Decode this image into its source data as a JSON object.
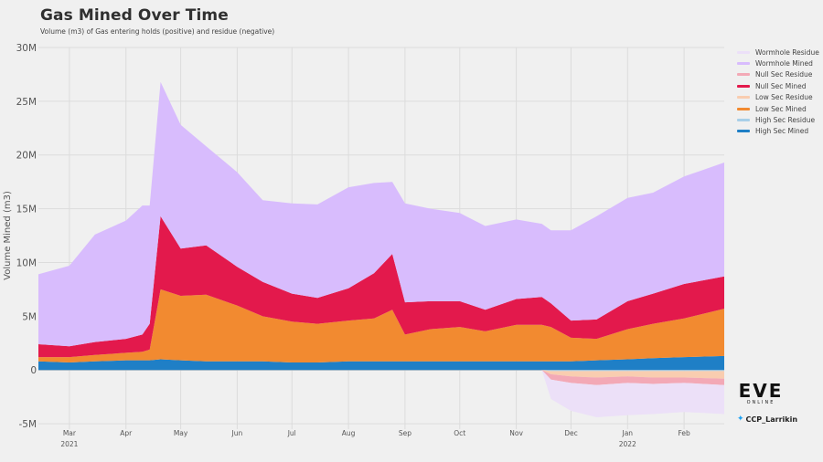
{
  "title": "Gas Mined Over Time",
  "subtitle": "Volume (m3) of Gas entering holds (positive) and residue (negative)",
  "branding": {
    "logo": "EVE",
    "logo_sub": "ONLINE",
    "handle": "CCP_Larrikin",
    "handle_icon": "twitter-bird-icon"
  },
  "chart_data": {
    "type": "area",
    "stacked": true,
    "title": "Gas Mined Over Time",
    "subtitle": "Volume (m3) of Gas entering holds (positive) and residue (negative)",
    "ylabel": "Volume Mined (m3)",
    "xlabel": "",
    "ylim": [
      -5500000,
      30000000
    ],
    "yticks": [
      {
        "value": -5000000,
        "label": "-5M"
      },
      {
        "value": 0,
        "label": "0"
      },
      {
        "value": 5000000,
        "label": "5M"
      },
      {
        "value": 10000000,
        "label": "10M"
      },
      {
        "value": 15000000,
        "label": "15M"
      },
      {
        "value": 20000000,
        "label": "20M"
      },
      {
        "value": 25000000,
        "label": "25M"
      },
      {
        "value": 30000000,
        "label": "30M"
      }
    ],
    "xlim": [
      "2021-02-12",
      "2022-02-23"
    ],
    "xticks": [
      {
        "date": "2021-03-01",
        "label": "Mar",
        "sub": "2021"
      },
      {
        "date": "2021-04-01",
        "label": "Apr",
        "sub": ""
      },
      {
        "date": "2021-05-01",
        "label": "May",
        "sub": ""
      },
      {
        "date": "2021-06-01",
        "label": "Jun",
        "sub": ""
      },
      {
        "date": "2021-07-01",
        "label": "Jul",
        "sub": ""
      },
      {
        "date": "2021-08-01",
        "label": "Aug",
        "sub": ""
      },
      {
        "date": "2021-09-01",
        "label": "Sep",
        "sub": ""
      },
      {
        "date": "2021-10-01",
        "label": "Oct",
        "sub": ""
      },
      {
        "date": "2021-11-01",
        "label": "Nov",
        "sub": ""
      },
      {
        "date": "2021-12-01",
        "label": "Dec",
        "sub": ""
      },
      {
        "date": "2022-01-01",
        "label": "Jan",
        "sub": "2022"
      },
      {
        "date": "2022-02-01",
        "label": "Feb",
        "sub": ""
      }
    ],
    "grid": true,
    "legend_position": "top-right",
    "x": [
      "2021-02-12",
      "2021-03-01",
      "2021-03-15",
      "2021-04-01",
      "2021-04-10",
      "2021-04-14",
      "2021-04-20",
      "2021-05-01",
      "2021-05-15",
      "2021-06-01",
      "2021-06-15",
      "2021-07-01",
      "2021-07-15",
      "2021-08-01",
      "2021-08-15",
      "2021-08-25",
      "2021-09-01",
      "2021-09-15",
      "2021-10-01",
      "2021-10-15",
      "2021-11-01",
      "2021-11-15",
      "2021-11-20",
      "2021-12-01",
      "2021-12-15",
      "2022-01-01",
      "2022-01-15",
      "2022-02-01",
      "2022-02-23"
    ],
    "series": [
      {
        "name": "High Sec Mined",
        "color": "#1f7fc6",
        "sign": 1,
        "values": [
          0.8,
          0.7,
          0.8,
          0.9,
          0.9,
          0.9,
          1.0,
          0.9,
          0.8,
          0.8,
          0.8,
          0.7,
          0.7,
          0.8,
          0.8,
          0.8,
          0.8,
          0.8,
          0.8,
          0.8,
          0.8,
          0.8,
          0.8,
          0.8,
          0.9,
          1.0,
          1.1,
          1.2,
          1.3
        ]
      },
      {
        "name": "Low Sec Mined",
        "color": "#f28a30",
        "sign": 1,
        "values": [
          0.4,
          0.5,
          0.6,
          0.7,
          0.8,
          1.0,
          6.5,
          6.0,
          6.2,
          5.2,
          4.2,
          3.8,
          3.6,
          3.8,
          4.0,
          4.8,
          2.5,
          3.0,
          3.2,
          2.8,
          3.4,
          3.4,
          3.2,
          2.2,
          2.0,
          2.8,
          3.2,
          3.6,
          4.4
        ]
      },
      {
        "name": "Null Sec Mined",
        "color": "#e3194c",
        "sign": 1,
        "values": [
          1.2,
          1.0,
          1.2,
          1.3,
          1.6,
          2.4,
          6.8,
          4.4,
          4.6,
          3.6,
          3.2,
          2.6,
          2.4,
          3.0,
          4.2,
          5.2,
          3.0,
          2.6,
          2.4,
          2.0,
          2.4,
          2.6,
          2.2,
          1.6,
          1.8,
          2.6,
          2.8,
          3.2,
          3.0
        ]
      },
      {
        "name": "Wormhole Mined",
        "color": "#d8bcfd",
        "sign": 1,
        "values": [
          6.5,
          7.5,
          10.0,
          11.0,
          12.0,
          11.0,
          12.5,
          11.5,
          9.2,
          8.8,
          7.6,
          8.4,
          8.7,
          9.4,
          8.4,
          6.7,
          9.2,
          8.6,
          8.2,
          7.8,
          7.4,
          6.8,
          6.8,
          8.4,
          9.6,
          9.6,
          9.4,
          10.0,
          10.6
        ]
      },
      {
        "name": "High Sec Residue",
        "color": "#a8cfe8",
        "sign": -1,
        "values": [
          0,
          0,
          0,
          0,
          0,
          0,
          0,
          0,
          0,
          0,
          0,
          0,
          0,
          0,
          0,
          0,
          0,
          0,
          0,
          0,
          0,
          0,
          0.1,
          0.1,
          0.1,
          0.1,
          0.1,
          0.1,
          0.1
        ]
      },
      {
        "name": "Low Sec Residue",
        "color": "#f9cdb0",
        "sign": -1,
        "values": [
          0,
          0,
          0,
          0,
          0,
          0,
          0,
          0,
          0,
          0,
          0,
          0,
          0,
          0,
          0,
          0,
          0,
          0,
          0,
          0,
          0,
          0,
          0.3,
          0.5,
          0.6,
          0.5,
          0.6,
          0.6,
          0.7
        ]
      },
      {
        "name": "Null Sec Residue",
        "color": "#f3a9b6",
        "sign": -1,
        "values": [
          0,
          0,
          0,
          0,
          0,
          0,
          0,
          0,
          0,
          0,
          0,
          0,
          0,
          0,
          0,
          0,
          0,
          0,
          0,
          0,
          0,
          0,
          0.5,
          0.6,
          0.7,
          0.6,
          0.6,
          0.5,
          0.6
        ]
      },
      {
        "name": "Wormhole Residue",
        "color": "#ece0f8",
        "sign": -1,
        "values": [
          0,
          0,
          0,
          0,
          0,
          0,
          0,
          0,
          0,
          0,
          0,
          0,
          0,
          0,
          0,
          0,
          0,
          0,
          0,
          0,
          0,
          0,
          1.8,
          2.6,
          3.0,
          3.0,
          2.8,
          2.7,
          2.7
        ]
      }
    ],
    "value_unit_multiplier": 1000000,
    "legend_order": [
      "Wormhole Residue",
      "Wormhole Mined",
      "Null Sec Residue",
      "Null Sec Mined",
      "Low Sec Residue",
      "Low Sec Mined",
      "High Sec Residue",
      "High Sec Mined"
    ]
  }
}
